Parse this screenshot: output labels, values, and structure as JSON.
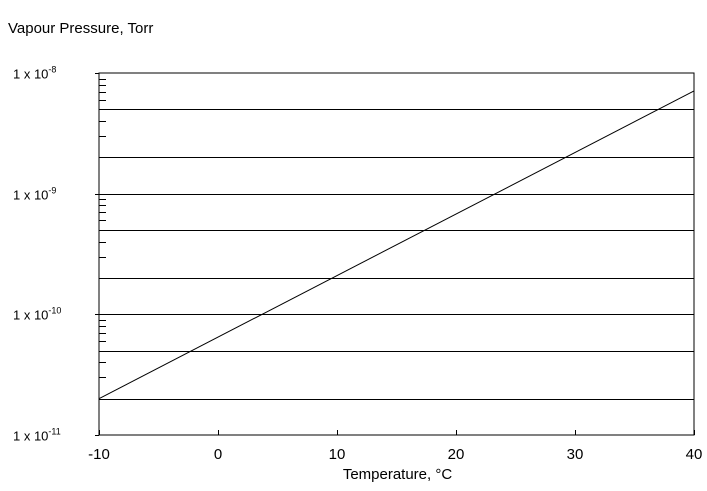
{
  "chart_data": {
    "type": "line",
    "ylabel": "Vapour Pressure, Torr",
    "xlabel": "Temperature, °C",
    "xlim": [
      -10,
      40
    ],
    "ylim": [
      1e-11,
      1e-08
    ],
    "yscale": "log",
    "x_ticks": [
      "-10",
      "0",
      "10",
      "20",
      "30",
      "40"
    ],
    "y_ticks": [
      {
        "value": 1e-08,
        "base": "1 x 10",
        "exp": "-8"
      },
      {
        "value": 1e-09,
        "base": "1 x 10",
        "exp": "-9"
      },
      {
        "value": 1e-10,
        "base": "1 x 10",
        "exp": "-10"
      },
      {
        "value": 1e-11,
        "base": "1 x 10",
        "exp": "-11"
      }
    ],
    "gridlines_y": [
      5e-09,
      2e-09,
      1e-09,
      5e-10,
      2e-10,
      1e-10,
      5e-11,
      2e-11
    ],
    "grid": "horizontal",
    "series": [
      {
        "x": [
          -10,
          40
        ],
        "y": [
          2e-11,
          7.1e-09
        ]
      }
    ]
  }
}
